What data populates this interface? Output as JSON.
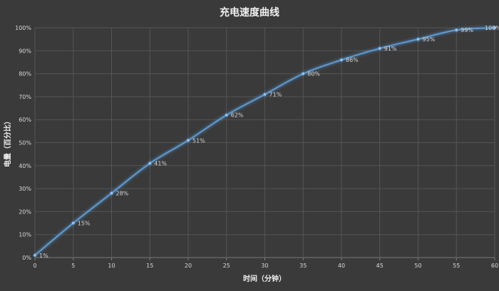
{
  "chart_data": {
    "type": "line",
    "title": "充电速度曲线",
    "xlabel": "时间（分钟）",
    "ylabel": "电量（百分比）",
    "x": [
      0,
      5,
      10,
      15,
      20,
      25,
      30,
      35,
      40,
      45,
      50,
      55,
      60
    ],
    "series": [
      {
        "values": [
          1,
          15,
          28,
          41,
          51,
          62,
          71,
          80,
          86,
          91,
          95,
          99,
          100
        ],
        "labels": [
          "1%",
          "15%",
          "28%",
          "41%",
          "51%",
          "62%",
          "71%",
          "80%",
          "86%",
          "91%",
          "95%",
          "99%",
          "100%"
        ]
      }
    ],
    "xlim": [
      0,
      60
    ],
    "ylim": [
      0,
      100
    ],
    "x_ticks": [
      "0",
      "5",
      "10",
      "15",
      "20",
      "25",
      "30",
      "35",
      "40",
      "45",
      "50",
      "55",
      "60"
    ],
    "y_ticks": [
      "0%",
      "10%",
      "20%",
      "30%",
      "40%",
      "50%",
      "60%",
      "70%",
      "80%",
      "90%",
      "100%"
    ],
    "grid": true,
    "colors": {
      "background": "#3a3a3a",
      "line": "#5b9bd5",
      "marker": "#9cc3ec",
      "grid": "#555555"
    }
  }
}
